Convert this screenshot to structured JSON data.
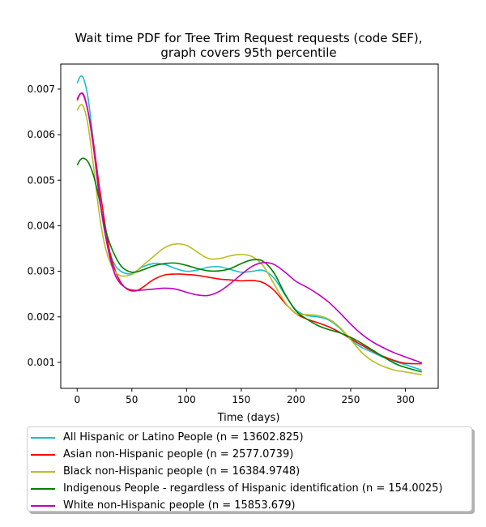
{
  "chart_data": {
    "type": "line",
    "title": "Wait time PDF for Tree Trim Request  requests (code SEF),",
    "subtitle": "graph covers 95th percentile",
    "xlabel": "Time (days)",
    "ylabel": "",
    "xlim": [
      -15,
      330
    ],
    "ylim": [
      0.00043,
      0.00755
    ],
    "xticks": [
      0,
      50,
      100,
      150,
      200,
      250,
      300
    ],
    "yticks": [
      0.001,
      0.002,
      0.003,
      0.004,
      0.005,
      0.006,
      0.007
    ],
    "ytick_labels": [
      "0.001",
      "0.002",
      "0.003",
      "0.004",
      "0.005",
      "0.006",
      "0.007"
    ],
    "grid": false,
    "legend_position": "below",
    "series": [
      {
        "name": "All Hispanic or Latino People (n = 13602.825)",
        "color": "#17becf",
        "x": [
          0,
          3,
          6,
          10,
          15,
          20,
          25,
          30,
          35,
          40,
          45,
          50,
          55,
          60,
          70,
          80,
          90,
          100,
          110,
          120,
          130,
          140,
          150,
          160,
          170,
          180,
          190,
          200,
          210,
          220,
          230,
          240,
          250,
          260,
          270,
          280,
          290,
          300,
          315
        ],
        "values": [
          0.00713,
          0.00728,
          0.00722,
          0.0068,
          0.0058,
          0.0047,
          0.0039,
          0.0034,
          0.00312,
          0.003,
          0.00295,
          0.00295,
          0.00302,
          0.0031,
          0.00317,
          0.00315,
          0.00306,
          0.003,
          0.00303,
          0.00309,
          0.0031,
          0.00304,
          0.00298,
          0.003,
          0.00302,
          0.00285,
          0.00248,
          0.00215,
          0.00203,
          0.002,
          0.00193,
          0.00175,
          0.0015,
          0.00133,
          0.00122,
          0.00111,
          0.00102,
          0.00095,
          0.00083
        ]
      },
      {
        "name": "Asian non-Hispanic people (n = 2577.0739)",
        "color": "#ff0000",
        "x": [
          0,
          3,
          6,
          10,
          15,
          20,
          25,
          30,
          35,
          40,
          45,
          50,
          55,
          60,
          70,
          80,
          90,
          100,
          110,
          120,
          130,
          140,
          150,
          160,
          170,
          180,
          190,
          200,
          210,
          220,
          230,
          240,
          250,
          260,
          270,
          280,
          290,
          300,
          315
        ],
        "values": [
          0.00675,
          0.0069,
          0.00685,
          0.0065,
          0.0058,
          0.0049,
          0.0041,
          0.0034,
          0.003,
          0.00275,
          0.00262,
          0.00257,
          0.00258,
          0.00265,
          0.00282,
          0.00292,
          0.00294,
          0.00293,
          0.00291,
          0.00287,
          0.00283,
          0.00281,
          0.00279,
          0.0028,
          0.00275,
          0.00258,
          0.0023,
          0.00207,
          0.00195,
          0.00187,
          0.00178,
          0.00166,
          0.00152,
          0.00138,
          0.00125,
          0.00113,
          0.00104,
          0.00098,
          0.00097
        ]
      },
      {
        "name": "Black non-Hispanic people (n = 16384.9748)",
        "color": "#bcbd22",
        "x": [
          0,
          3,
          6,
          10,
          15,
          20,
          25,
          30,
          35,
          40,
          45,
          50,
          55,
          60,
          70,
          80,
          90,
          100,
          110,
          120,
          130,
          140,
          150,
          160,
          170,
          180,
          190,
          200,
          210,
          220,
          230,
          240,
          250,
          260,
          270,
          280,
          290,
          300,
          315
        ],
        "values": [
          0.00653,
          0.00665,
          0.0066,
          0.0062,
          0.0053,
          0.0043,
          0.0036,
          0.0032,
          0.00298,
          0.0029,
          0.0029,
          0.00293,
          0.00302,
          0.00313,
          0.00333,
          0.00352,
          0.0036,
          0.00357,
          0.00342,
          0.00328,
          0.00328,
          0.00334,
          0.00337,
          0.00332,
          0.00312,
          0.00272,
          0.00232,
          0.00207,
          0.00205,
          0.00203,
          0.00195,
          0.00177,
          0.0015,
          0.00122,
          0.00103,
          0.00091,
          0.00083,
          0.00079,
          0.00073
        ]
      },
      {
        "name": "Indigenous People - regardless of Hispanic identification (n = 154.0025)",
        "color": "#008000",
        "x": [
          0,
          3,
          6,
          10,
          15,
          20,
          25,
          30,
          35,
          40,
          45,
          50,
          55,
          60,
          70,
          80,
          90,
          100,
          110,
          120,
          130,
          140,
          150,
          160,
          170,
          180,
          190,
          200,
          210,
          220,
          230,
          240,
          250,
          260,
          270,
          280,
          290,
          300,
          315
        ],
        "values": [
          0.00533,
          0.00545,
          0.00548,
          0.0054,
          0.0051,
          0.0046,
          0.004,
          0.0036,
          0.00332,
          0.00312,
          0.00302,
          0.00298,
          0.00299,
          0.00303,
          0.00312,
          0.00317,
          0.00318,
          0.00313,
          0.00306,
          0.00301,
          0.00301,
          0.00306,
          0.00317,
          0.00325,
          0.00322,
          0.00296,
          0.0025,
          0.00213,
          0.00195,
          0.00181,
          0.00172,
          0.00165,
          0.00155,
          0.00142,
          0.00127,
          0.00112,
          0.00098,
          0.00089,
          0.00079
        ]
      },
      {
        "name": "White non-Hispanic people (n = 15853.679)",
        "color": "#bf00bf",
        "x": [
          0,
          3,
          6,
          10,
          15,
          20,
          25,
          30,
          35,
          40,
          45,
          50,
          55,
          60,
          70,
          80,
          90,
          100,
          110,
          120,
          130,
          140,
          150,
          160,
          170,
          180,
          190,
          200,
          210,
          220,
          230,
          240,
          250,
          260,
          270,
          280,
          290,
          300,
          315
        ],
        "values": [
          0.00678,
          0.0069,
          0.00687,
          0.0065,
          0.0057,
          0.0047,
          0.0039,
          0.0033,
          0.0029,
          0.00272,
          0.00263,
          0.00259,
          0.00258,
          0.00259,
          0.00261,
          0.00263,
          0.00261,
          0.00254,
          0.00248,
          0.00247,
          0.00256,
          0.00273,
          0.00293,
          0.00311,
          0.00319,
          0.00315,
          0.00298,
          0.00278,
          0.00265,
          0.0025,
          0.00232,
          0.00209,
          0.00184,
          0.00162,
          0.00145,
          0.00132,
          0.00121,
          0.00112,
          0.00099
        ]
      }
    ]
  }
}
